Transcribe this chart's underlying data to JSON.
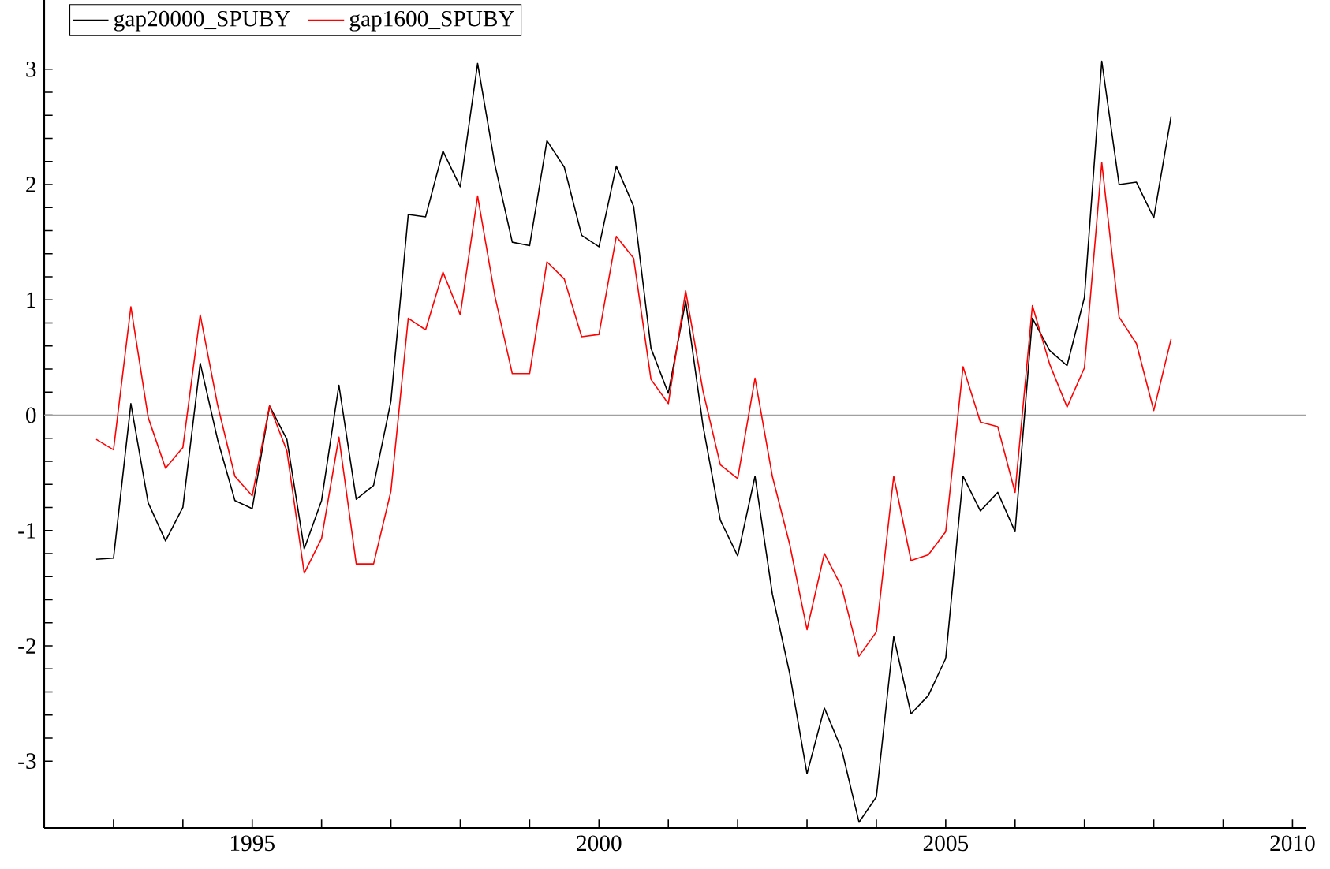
{
  "chart_data": {
    "type": "line",
    "x": [
      1992.75,
      1993,
      1993.25,
      1993.5,
      1993.75,
      1994,
      1994.25,
      1994.5,
      1994.75,
      1995,
      1995.25,
      1995.5,
      1995.75,
      1996,
      1996.25,
      1996.5,
      1996.75,
      1997,
      1997.25,
      1997.5,
      1997.75,
      1998,
      1998.25,
      1998.5,
      1998.75,
      1999,
      1999.25,
      1999.5,
      1999.75,
      2000,
      2000.25,
      2000.5,
      2000.75,
      2001,
      2001.25,
      2001.5,
      2001.75,
      2002,
      2002.25,
      2002.5,
      2002.75,
      2003,
      2003.25,
      2003.5,
      2003.75,
      2004,
      2004.25,
      2004.5,
      2004.75,
      2005,
      2005.25,
      2005.5,
      2005.75,
      2006,
      2006.25,
      2006.5,
      2006.75,
      2007,
      2007.25,
      2007.5,
      2007.75,
      2008,
      2008.25
    ],
    "series": [
      {
        "name": "gap20000_SPUBY",
        "color": "#000000",
        "values": [
          -1.25,
          -1.24,
          0.1,
          -0.76,
          -1.09,
          -0.8,
          0.45,
          -0.21,
          -0.74,
          -0.81,
          0.08,
          -0.21,
          -1.16,
          -0.74,
          0.26,
          -0.73,
          -0.61,
          0.12,
          1.74,
          1.72,
          2.29,
          1.98,
          3.05,
          2.17,
          1.5,
          1.47,
          2.38,
          2.15,
          1.56,
          1.46,
          2.16,
          1.81,
          0.58,
          0.19,
          0.99,
          -0.09,
          -0.91,
          -1.22,
          -0.53,
          -1.55,
          -2.24,
          -3.11,
          -2.54,
          -2.9,
          -3.53,
          -3.31,
          -1.92,
          -2.59,
          -2.43,
          -2.11,
          -0.53,
          -0.83,
          -0.67,
          -1.01,
          0.84,
          0.56,
          0.43,
          1.02,
          3.07,
          2.0,
          2.02,
          1.71,
          2.59
        ]
      },
      {
        "name": "gap1600_SPUBY",
        "color": "#ff0000",
        "values": [
          -0.21,
          -0.3,
          0.94,
          -0.02,
          -0.46,
          -0.28,
          0.87,
          0.09,
          -0.53,
          -0.7,
          0.08,
          -0.31,
          -1.37,
          -1.07,
          -0.19,
          -1.29,
          -1.29,
          -0.66,
          0.84,
          0.74,
          1.24,
          0.87,
          1.9,
          1.03,
          0.36,
          0.36,
          1.33,
          1.18,
          0.68,
          0.7,
          1.55,
          1.36,
          0.31,
          0.1,
          1.08,
          0.21,
          -0.43,
          -0.55,
          0.32,
          -0.53,
          -1.12,
          -1.86,
          -1.2,
          -1.49,
          -2.09,
          -1.88,
          -0.53,
          -1.26,
          -1.21,
          -1.01,
          0.42,
          -0.06,
          -0.1,
          -0.67,
          0.95,
          0.44,
          0.07,
          0.41,
          2.19,
          0.85,
          0.62,
          0.04,
          0.66
        ]
      }
    ],
    "xlim": [
      1992,
      2010.2
    ],
    "ylim": [
      -3.58,
      3.6
    ],
    "xticks": [
      {
        "value": 1993,
        "label": null
      },
      {
        "value": 1994,
        "label": null
      },
      1995,
      {
        "value": 1996,
        "label": null
      },
      {
        "value": 1997,
        "label": null
      },
      {
        "value": 1998,
        "label": null
      },
      {
        "value": 1999,
        "label": null
      },
      2000,
      {
        "value": 2001,
        "label": null
      },
      {
        "value": 2002,
        "label": null
      },
      {
        "value": 2003,
        "label": null
      },
      {
        "value": 2004,
        "label": null
      },
      2005,
      {
        "value": 2006,
        "label": null
      },
      {
        "value": 2007,
        "label": null
      },
      {
        "value": 2008,
        "label": null
      },
      {
        "value": 2009,
        "label": null
      },
      2010
    ],
    "yticks": [
      -3,
      {
        "value": -2.8,
        "label": null
      },
      {
        "value": -2.6,
        "label": null
      },
      {
        "value": -2.4,
        "label": null
      },
      {
        "value": -2.2,
        "label": null
      },
      -2,
      {
        "value": -1.8,
        "label": null
      },
      {
        "value": -1.6,
        "label": null
      },
      {
        "value": -1.4,
        "label": null
      },
      {
        "value": -1.2,
        "label": null
      },
      -1,
      {
        "value": -0.8,
        "label": null
      },
      {
        "value": -0.6,
        "label": null
      },
      {
        "value": -0.4,
        "label": null
      },
      {
        "value": -0.2,
        "label": null
      },
      0,
      {
        "value": 0.2,
        "label": null
      },
      {
        "value": 0.4,
        "label": null
      },
      {
        "value": 0.6,
        "label": null
      },
      {
        "value": 0.8,
        "label": null
      },
      1,
      {
        "value": 1.2,
        "label": null
      },
      {
        "value": 1.4,
        "label": null
      },
      {
        "value": 1.6,
        "label": null
      },
      {
        "value": 1.8,
        "label": null
      },
      2,
      {
        "value": 2.2,
        "label": null
      },
      {
        "value": 2.4,
        "label": null
      },
      {
        "value": 2.6,
        "label": null
      },
      {
        "value": 2.8,
        "label": null
      },
      3
    ],
    "ref_lines": [
      {
        "axis": "y",
        "value": 0,
        "color": "#a0a0a0"
      }
    ],
    "legend": "top left",
    "grid": false,
    "marker": "none",
    "line_style": "solid"
  }
}
